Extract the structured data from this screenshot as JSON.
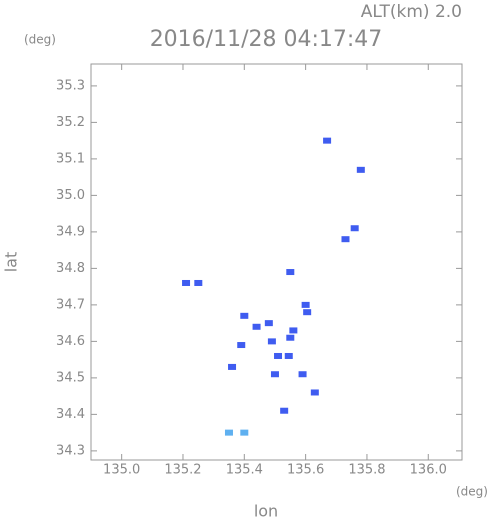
{
  "chart_data": {
    "type": "scatter",
    "title": "2016/11/28 04:17:47",
    "subtitle": "ALT(km) 2.0",
    "x_label": "lon",
    "y_label": "lat",
    "x_unit": "(deg)",
    "y_unit": "(deg)",
    "xlim": [
      134.9,
      136.11
    ],
    "ylim": [
      34.275,
      35.36
    ],
    "xticks": [
      {
        "value": 135.0,
        "label": "135.0"
      },
      135.2,
      135.4,
      135.6,
      135.8,
      {
        "value": 136.0,
        "label": "136.0"
      }
    ],
    "yticks": [
      34.3,
      34.4,
      34.5,
      34.6,
      34.7,
      34.8,
      34.9,
      {
        "value": 35.0,
        "label": "35.0"
      },
      35.1,
      35.2,
      35.3
    ],
    "series": [
      {
        "color": "#3f5cf0",
        "x": [
          135.67,
          135.78,
          135.76,
          135.73,
          135.21,
          135.25,
          135.6,
          135.55,
          135.605,
          135.48,
          135.4,
          135.44,
          135.56,
          135.55,
          135.49,
          135.39,
          135.51,
          135.545,
          135.5,
          135.59,
          135.36,
          135.63,
          135.53
        ],
        "y": [
          35.15,
          35.07,
          34.91,
          34.88,
          34.76,
          34.76,
          34.7,
          34.79,
          34.68,
          34.65,
          34.67,
          34.64,
          34.63,
          34.61,
          34.6,
          34.59,
          34.56,
          34.56,
          34.51,
          34.51,
          34.53,
          34.46,
          34.41
        ]
      },
      {
        "color": "#5fb0f0",
        "x": [
          135.35,
          135.4
        ],
        "y": [
          34.35,
          34.35
        ]
      }
    ]
  }
}
